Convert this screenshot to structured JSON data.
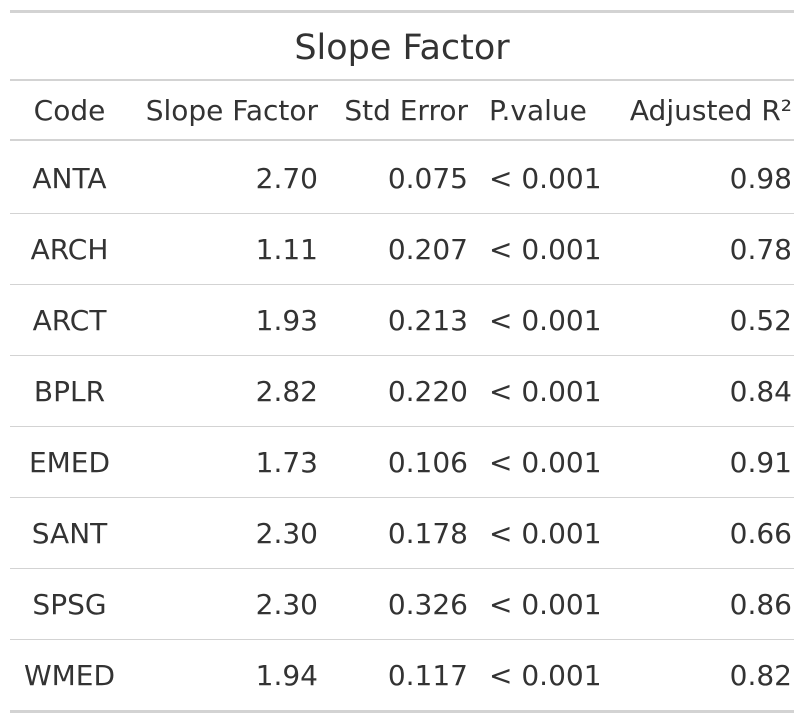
{
  "chart_data": {
    "type": "table",
    "title": "Slope Factor",
    "columns": [
      "Code",
      "Slope Factor",
      "Std Error",
      "P.value",
      "Adjusted R²"
    ],
    "rows": [
      {
        "code": "ANTA",
        "slope": "2.70",
        "std_error": "0.075",
        "p_value": "< 0.001",
        "adj_r2": "0.98"
      },
      {
        "code": "ARCH",
        "slope": "1.11",
        "std_error": "0.207",
        "p_value": "< 0.001",
        "adj_r2": "0.78"
      },
      {
        "code": "ARCT",
        "slope": "1.93",
        "std_error": "0.213",
        "p_value": "< 0.001",
        "adj_r2": "0.52"
      },
      {
        "code": "BPLR",
        "slope": "2.82",
        "std_error": "0.220",
        "p_value": "< 0.001",
        "adj_r2": "0.84"
      },
      {
        "code": "EMED",
        "slope": "1.73",
        "std_error": "0.106",
        "p_value": "< 0.001",
        "adj_r2": "0.91"
      },
      {
        "code": "SANT",
        "slope": "2.30",
        "std_error": "0.178",
        "p_value": "< 0.001",
        "adj_r2": "0.66"
      },
      {
        "code": "SPSG",
        "slope": "2.30",
        "std_error": "0.326",
        "p_value": "< 0.001",
        "adj_r2": "0.86"
      },
      {
        "code": "WMED",
        "slope": "1.94",
        "std_error": "0.117",
        "p_value": "< 0.001",
        "adj_r2": "0.82"
      }
    ]
  }
}
